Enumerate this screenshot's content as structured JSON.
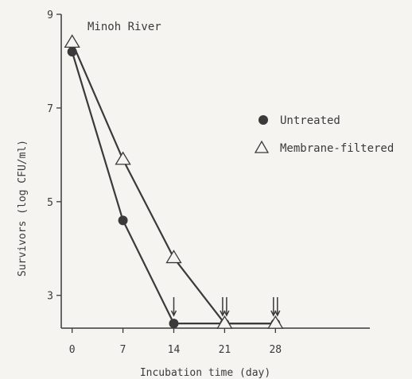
{
  "chart_data": {
    "type": "line",
    "annotation": "Minoh River",
    "xlabel": "Incubation time  (day)",
    "ylabel": "Survivors  (log CFU/ml)",
    "xlim": [
      -1.5,
      41
    ],
    "ylim": [
      2.3,
      9
    ],
    "xticks": [
      "0",
      "7",
      "14",
      "21",
      "28"
    ],
    "xtick_values": [
      0,
      7,
      14,
      21,
      28
    ],
    "yticks": [
      "3",
      "5",
      "7",
      "9"
    ],
    "ytick_values": [
      3,
      5,
      7,
      9
    ],
    "detection_limit_arrows": [
      {
        "series": "Untreated",
        "x": 14
      },
      {
        "series": "Untreated",
        "x": 21
      },
      {
        "series": "Membrane-filtered",
        "x": 21
      },
      {
        "series": "Untreated",
        "x": 28
      },
      {
        "series": "Membrane-filtered",
        "x": 28
      }
    ],
    "series": [
      {
        "name": "Untreated",
        "marker": "filled-circle",
        "x": [
          0,
          7,
          14,
          21,
          28
        ],
        "y": [
          8.2,
          4.6,
          2.4,
          2.4,
          2.4
        ]
      },
      {
        "name": "Membrane-filtered",
        "marker": "open-triangle",
        "x": [
          0,
          7,
          14,
          21,
          28
        ],
        "y": [
          8.4,
          5.9,
          3.8,
          2.4,
          2.4
        ]
      }
    ],
    "grid": false,
    "legend_position": "right"
  },
  "colors": {
    "ink": "#3a3a3a",
    "background": "#f6f4f1"
  }
}
